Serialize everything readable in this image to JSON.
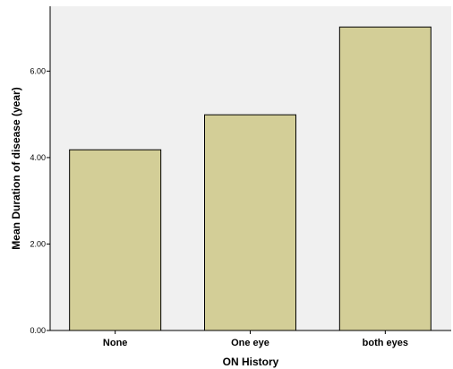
{
  "chart_data": {
    "type": "bar",
    "categories": [
      "None",
      "One eye",
      "both eyes"
    ],
    "values": [
      4.18,
      4.99,
      7.02
    ],
    "xlabel": "ON History",
    "ylabel": "Mean Duration of disease (year)",
    "ylim": [
      0,
      7.5
    ],
    "yticks": [
      "0.00",
      "2.00",
      "4.00",
      "6.00"
    ],
    "grid": false,
    "colors": {
      "plot_background": "#f0f0f0",
      "bar_fill": "#d3ce97",
      "bar_stroke": "#000000"
    }
  }
}
